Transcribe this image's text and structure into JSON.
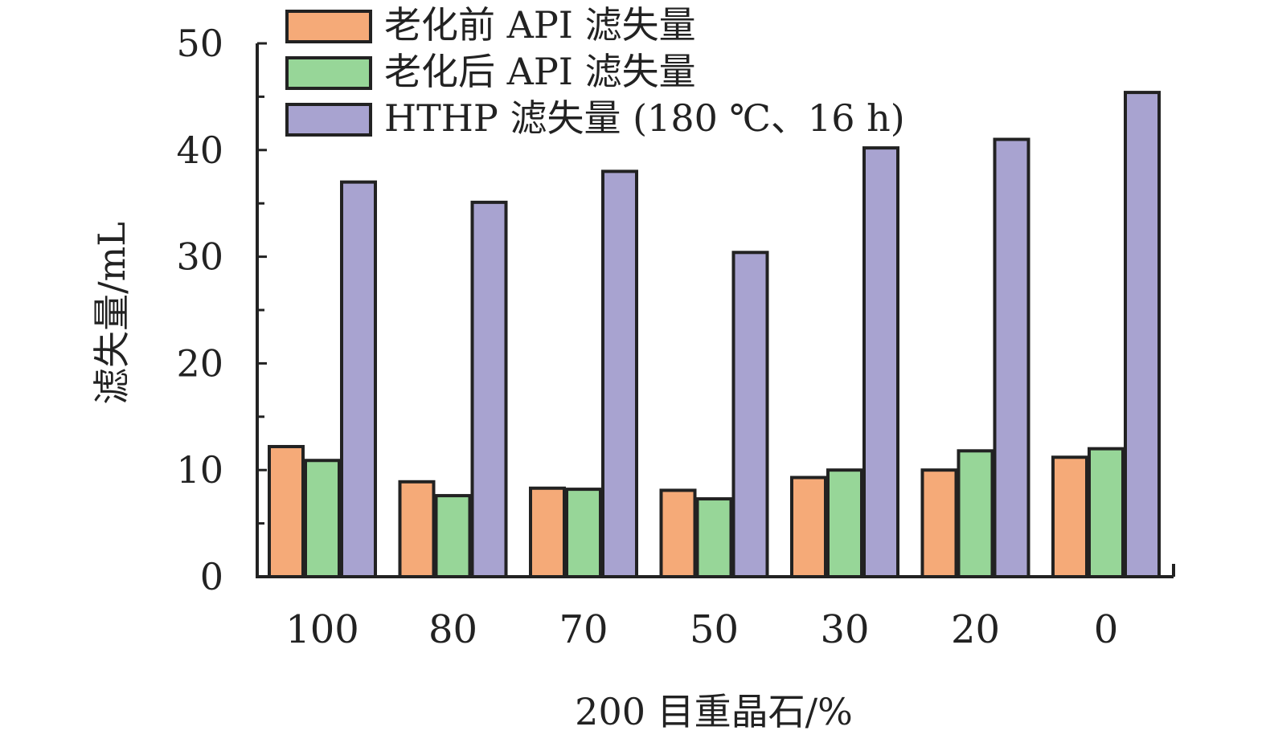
{
  "chart_data": {
    "type": "bar",
    "title": "",
    "xlabel": "200 目重晶石/%",
    "ylabel": "滤失量/mL",
    "ylim": [
      0,
      50
    ],
    "yticks": [
      0,
      10,
      20,
      30,
      40,
      50
    ],
    "grid": false,
    "legend_position": "top-left",
    "categories": [
      "100",
      "80",
      "70",
      "50",
      "30",
      "20",
      "0"
    ],
    "series": [
      {
        "name": "老化前 API 滤失量",
        "color": "#F5AA78",
        "values": [
          12.2,
          8.9,
          8.3,
          8.1,
          9.3,
          10.0,
          11.2
        ]
      },
      {
        "name": "老化后 API 滤失量",
        "color": "#97D698",
        "values": [
          10.9,
          7.6,
          8.2,
          7.3,
          10.0,
          11.8,
          12.0
        ]
      },
      {
        "name": "HTHP 滤失量 (180 ℃、16 h)",
        "color": "#A8A3D0",
        "values": [
          37.0,
          35.1,
          38.0,
          30.4,
          40.2,
          41.0,
          45.4
        ]
      }
    ]
  }
}
